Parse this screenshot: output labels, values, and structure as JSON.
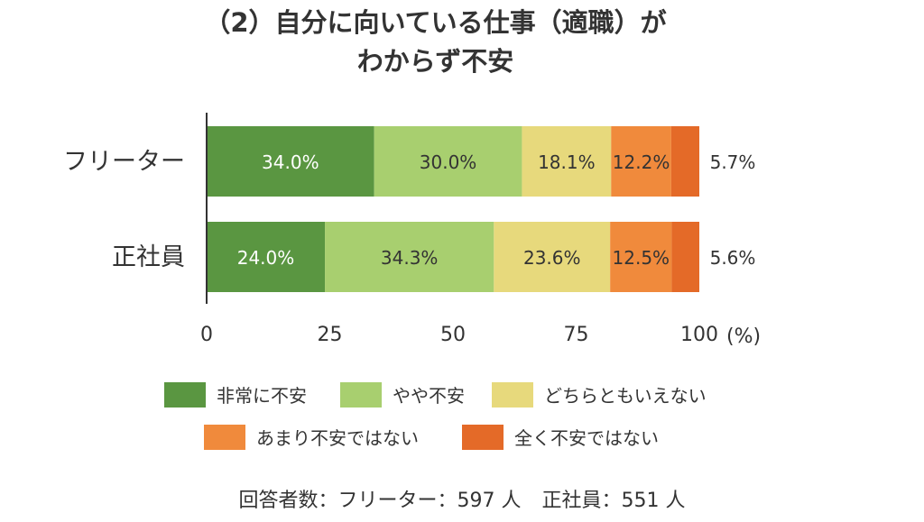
{
  "title": {
    "line1": "（2）自分に向いている仕事（適職）が",
    "line2": "わからず不安"
  },
  "chart_data": {
    "type": "bar",
    "orientation": "horizontal",
    "stacked": true,
    "categories": [
      "フリーター",
      "正社員"
    ],
    "series": [
      {
        "name": "非常に不安",
        "values": [
          34.0,
          24.0
        ],
        "labels": [
          "34.0%",
          "24.0%"
        ],
        "color": "#5a9641"
      },
      {
        "name": "やや不安",
        "values": [
          30.0,
          34.3
        ],
        "labels": [
          "30.0%",
          "34.3%"
        ],
        "color": "#a8cf6f"
      },
      {
        "name": "どちらともいえない",
        "values": [
          18.1,
          23.6
        ],
        "labels": [
          "18.1%",
          "23.6%"
        ],
        "color": "#e7d97c"
      },
      {
        "name": "あまり不安ではない",
        "values": [
          12.2,
          12.5
        ],
        "labels": [
          "12.2%",
          "12.5%"
        ],
        "color": "#f08a3c"
      },
      {
        "name": "全く不安ではない",
        "values": [
          5.7,
          5.6
        ],
        "labels": [
          "5.7%",
          "5.6%"
        ],
        "color": "#e46a28"
      }
    ],
    "xticks": [
      "0",
      "25",
      "50",
      "75",
      "100"
    ],
    "xtick_values": [
      0,
      25,
      50,
      75,
      100
    ],
    "xunit": "(%)",
    "xlim": [
      0,
      100
    ],
    "legend": "bottom"
  },
  "footer": {
    "respondents_label": "回答者数：フリーター：597 人",
    "seishain_label": "正社員：551 人"
  }
}
